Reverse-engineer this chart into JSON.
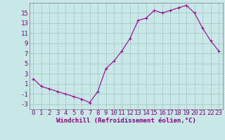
{
  "x": [
    0,
    1,
    2,
    3,
    4,
    5,
    6,
    7,
    8,
    9,
    10,
    11,
    12,
    13,
    14,
    15,
    16,
    17,
    18,
    19,
    20,
    21,
    22,
    23
  ],
  "y": [
    2,
    0.5,
    0.0,
    -0.5,
    -1.0,
    -1.5,
    -2.0,
    -2.7,
    -0.5,
    4.0,
    5.5,
    7.5,
    10.0,
    13.5,
    14.0,
    15.5,
    15.0,
    15.5,
    16.0,
    16.5,
    15.0,
    12.0,
    9.5,
    7.5
  ],
  "line_color": "#990099",
  "marker": "+",
  "marker_color": "#990099",
  "bg_color": "#c8e8e8",
  "grid_color": "#b0c8c8",
  "xlabel": "Windchill (Refroidissement éolien,°C)",
  "ylabel": "",
  "title": "",
  "xlim": [
    -0.5,
    23.5
  ],
  "ylim": [
    -4,
    17
  ],
  "xticks": [
    0,
    1,
    2,
    3,
    4,
    5,
    6,
    7,
    8,
    9,
    10,
    11,
    12,
    13,
    14,
    15,
    16,
    17,
    18,
    19,
    20,
    21,
    22,
    23
  ],
  "yticks": [
    -3,
    -1,
    1,
    3,
    5,
    7,
    9,
    11,
    13,
    15
  ],
  "tick_color": "#880088",
  "label_color": "#880088",
  "font_size": 6.5
}
